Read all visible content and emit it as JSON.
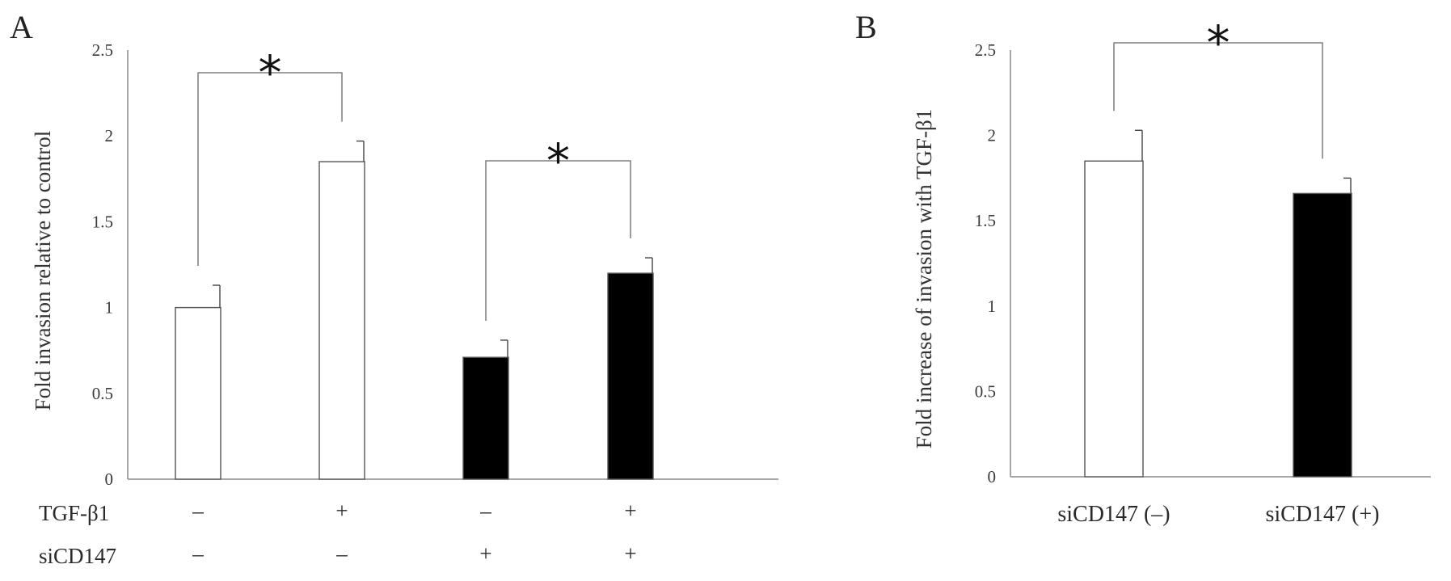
{
  "chart_data": [
    {
      "type": "bar",
      "panel_label": "A",
      "ylabel": "Fold invasion relative to control",
      "ylim": [
        0,
        2.5
      ],
      "yticks": [
        "0",
        "0.5",
        "1",
        "1.5",
        "2",
        "2.5"
      ],
      "bars": [
        {
          "value": 1.0,
          "error": 0.13,
          "color": "#ffffff"
        },
        {
          "value": 1.85,
          "error": 0.12,
          "color": "#ffffff"
        },
        {
          "value": 0.71,
          "error": 0.1,
          "color": "#000000"
        },
        {
          "value": 1.2,
          "error": 0.09,
          "color": "#000000"
        }
      ],
      "conditions": [
        {
          "name": "TGF-β1",
          "values": [
            "–",
            "+",
            "–",
            "+"
          ]
        },
        {
          "name": "siCD147",
          "values": [
            "–",
            "–",
            "+",
            "+"
          ]
        }
      ],
      "significance": [
        {
          "from": 0,
          "to": 1,
          "label": "*"
        },
        {
          "from": 2,
          "to": 3,
          "label": "*"
        }
      ],
      "grid": false
    },
    {
      "type": "bar",
      "panel_label": "B",
      "ylabel": "Fold increase of invasion with TGF-β1",
      "ylim": [
        0,
        2.5
      ],
      "yticks": [
        "0",
        "0.5",
        "1",
        "1.5",
        "2",
        "2.5"
      ],
      "categories": [
        "siCD147 (–)",
        "siCD147 (+)"
      ],
      "bars": [
        {
          "value": 1.85,
          "error": 0.18,
          "color": "#ffffff"
        },
        {
          "value": 1.66,
          "error": 0.09,
          "color": "#000000"
        }
      ],
      "significance": [
        {
          "from": 0,
          "to": 1,
          "label": "*"
        }
      ],
      "grid": false
    }
  ]
}
